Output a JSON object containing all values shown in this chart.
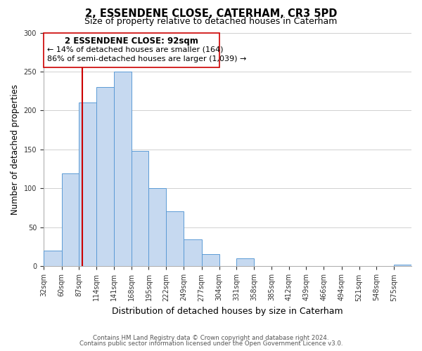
{
  "title": "2, ESSENDENE CLOSE, CATERHAM, CR3 5PD",
  "subtitle": "Size of property relative to detached houses in Caterham",
  "xlabel": "Distribution of detached houses by size in Caterham",
  "ylabel": "Number of detached properties",
  "bin_labels": [
    "32sqm",
    "60sqm",
    "87sqm",
    "114sqm",
    "141sqm",
    "168sqm",
    "195sqm",
    "222sqm",
    "249sqm",
    "277sqm",
    "304sqm",
    "331sqm",
    "358sqm",
    "385sqm",
    "412sqm",
    "439sqm",
    "466sqm",
    "494sqm",
    "521sqm",
    "548sqm",
    "575sqm"
  ],
  "bar_heights": [
    20,
    119,
    210,
    230,
    250,
    148,
    100,
    71,
    35,
    16,
    0,
    10,
    0,
    0,
    0,
    0,
    0,
    0,
    0,
    0,
    2
  ],
  "bar_color": "#c6d9f0",
  "bar_edge_color": "#5b9bd5",
  "property_line_x": 92,
  "property_line_color": "#cc0000",
  "ylim": [
    0,
    300
  ],
  "yticks": [
    0,
    50,
    100,
    150,
    200,
    250,
    300
  ],
  "annotation_title": "2 ESSENDENE CLOSE: 92sqm",
  "annotation_line1": "← 14% of detached houses are smaller (164)",
  "annotation_line2": "86% of semi-detached houses are larger (1,039) →",
  "footer_line1": "Contains HM Land Registry data © Crown copyright and database right 2024.",
  "footer_line2": "Contains public sector information licensed under the Open Government Licence v3.0.",
  "bin_edges": [
    32,
    60,
    87,
    114,
    141,
    168,
    195,
    222,
    249,
    277,
    304,
    331,
    358,
    385,
    412,
    439,
    466,
    494,
    521,
    548,
    575,
    602
  ]
}
